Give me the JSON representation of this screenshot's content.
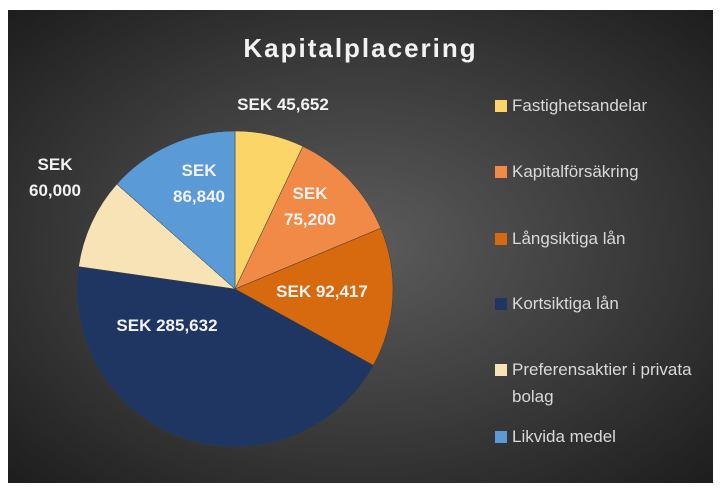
{
  "chart_data": {
    "type": "pie",
    "title": "Kapitalplacering",
    "categories": [
      "Fastighetsandelar",
      "Kapitalförsäkring",
      "Långsiktiga lån",
      "Kortsiktiga lån",
      "Preferensaktier i privata bolag",
      "Likvida medel"
    ],
    "values": [
      45652,
      75200,
      92417,
      285632,
      60000,
      86840
    ],
    "value_labels": [
      "SEK 45,652",
      "SEK 75,200",
      "SEK 92,417",
      "SEK 285,632",
      "SEK 60,000",
      "SEK 86,840"
    ],
    "colors": [
      "#fcd568",
      "#f08a46",
      "#d7690f",
      "#1f3662",
      "#f7e3b5",
      "#5a9ad6"
    ],
    "legend": "right"
  }
}
